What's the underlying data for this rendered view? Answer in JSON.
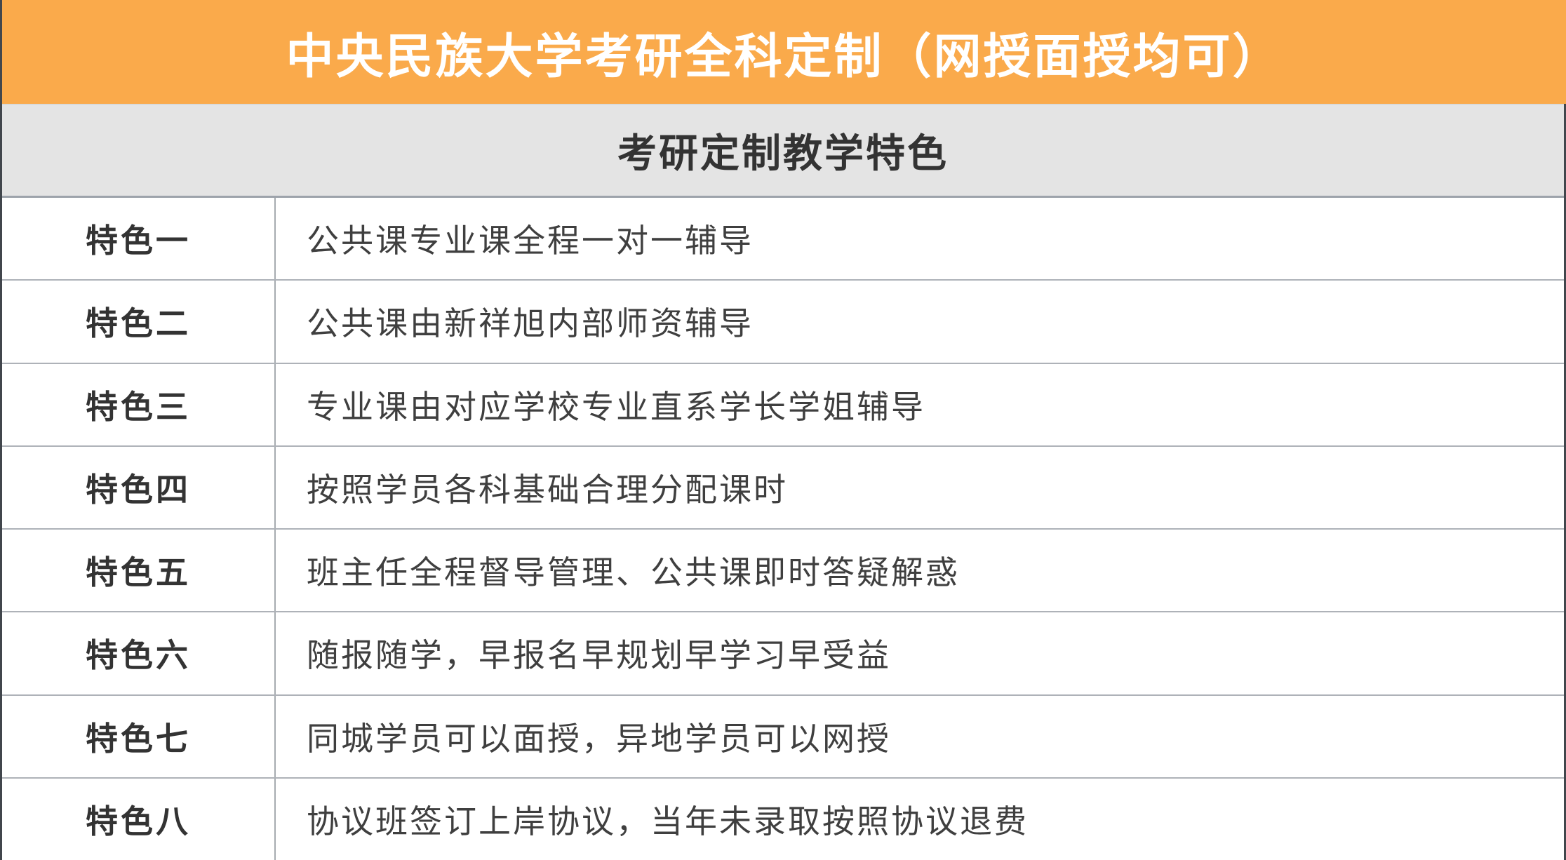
{
  "banner": {
    "title": "中央民族大学考研全科定制（网授面授均可）",
    "bg_color": "#faaa4b",
    "text_color": "#ffffff"
  },
  "subtitle": {
    "text": "考研定制教学特色",
    "bg_color": "#e4e4e4",
    "text_color": "#333333"
  },
  "table": {
    "rows": [
      {
        "label": "特色一",
        "description": "公共课专业课全程一对一辅导"
      },
      {
        "label": "特色二",
        "description": "公共课由新祥旭内部师资辅导"
      },
      {
        "label": "特色三",
        "description": "专业课由对应学校专业直系学长学姐辅导"
      },
      {
        "label": "特色四",
        "description": "按照学员各科基础合理分配课时"
      },
      {
        "label": "特色五",
        "description": "班主任全程督导管理、公共课即时答疑解惑"
      },
      {
        "label": "特色六",
        "description": "随报随学，早报名早规划早学习早受益"
      },
      {
        "label": "特色七",
        "description": "同城学员可以面授，异地学员可以网授"
      },
      {
        "label": "特色八",
        "description": "协议班签订上岸协议，当年未录取按照协议退费"
      }
    ]
  },
  "colors": {
    "accent_orange": "#faaa4b",
    "subtitle_gray": "#e4e4e4",
    "side_border_dark": "#41464c",
    "grid_line": "#aeb2b8",
    "text_dark": "#333333"
  }
}
